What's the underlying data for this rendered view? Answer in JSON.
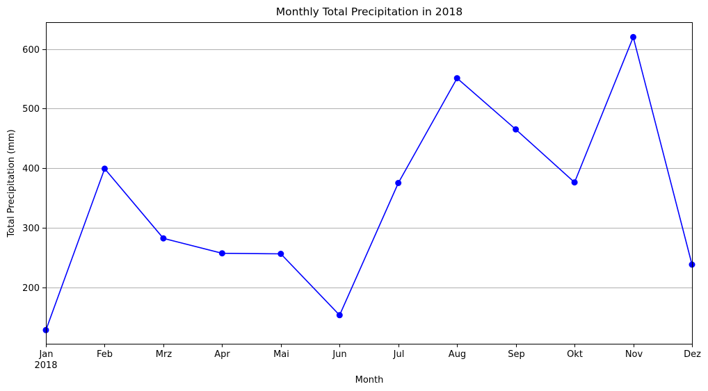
{
  "chart_data": {
    "type": "line",
    "title": "Monthly Total Precipitation in 2018",
    "xlabel": "Month",
    "ylabel": "Total Precipitation (mm)",
    "categories": [
      "Jan",
      "Feb",
      "Mrz",
      "Apr",
      "Mai",
      "Jun",
      "Jul",
      "Aug",
      "Sep",
      "Okt",
      "Nov",
      "Dez"
    ],
    "year_label": "2018",
    "series": [
      {
        "values": [
          128,
          399,
          282,
          257,
          256,
          153,
          375,
          551,
          465,
          376,
          620,
          238
        ]
      }
    ],
    "ylim": [
      105,
      645
    ],
    "yticks": [
      200,
      300,
      400,
      500,
      600
    ],
    "grid": "horizontal",
    "line_color": "#0000ff",
    "marker": "circle"
  }
}
